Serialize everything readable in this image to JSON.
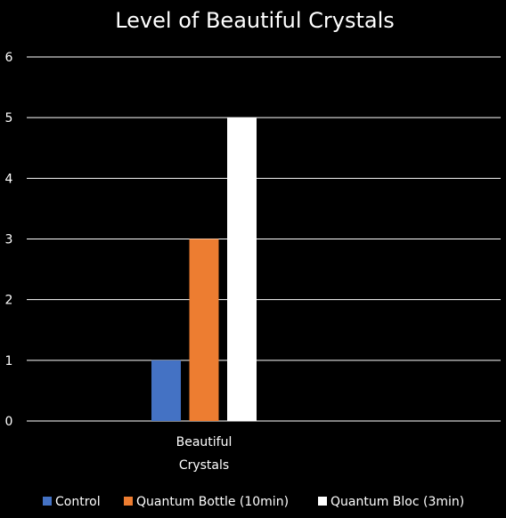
{
  "chart_data": {
    "type": "bar",
    "title": "Level of Beautiful Crystals",
    "categories": [
      "Beautiful Crystals"
    ],
    "category_label_lines": [
      [
        "Beautiful",
        "Crystals"
      ]
    ],
    "series": [
      {
        "name": "Control",
        "values": [
          1
        ],
        "color": "#4472C4"
      },
      {
        "name": "Quantum Bottle (10min)",
        "values": [
          3
        ],
        "color": "#ED7D31"
      },
      {
        "name": "Quantum Bloc (3min)",
        "values": [
          5
        ],
        "color": "#FFFFFF"
      }
    ],
    "xlabel": "",
    "ylabel": "",
    "ylim": [
      0,
      6
    ],
    "yticks": [
      "0",
      "1",
      "2",
      "3",
      "4",
      "5",
      "6"
    ],
    "grid": true,
    "legend_position": "bottom",
    "colors": {
      "background": "#000000",
      "text": "#FFFFFF",
      "gridline": "#FFFFFF"
    }
  }
}
